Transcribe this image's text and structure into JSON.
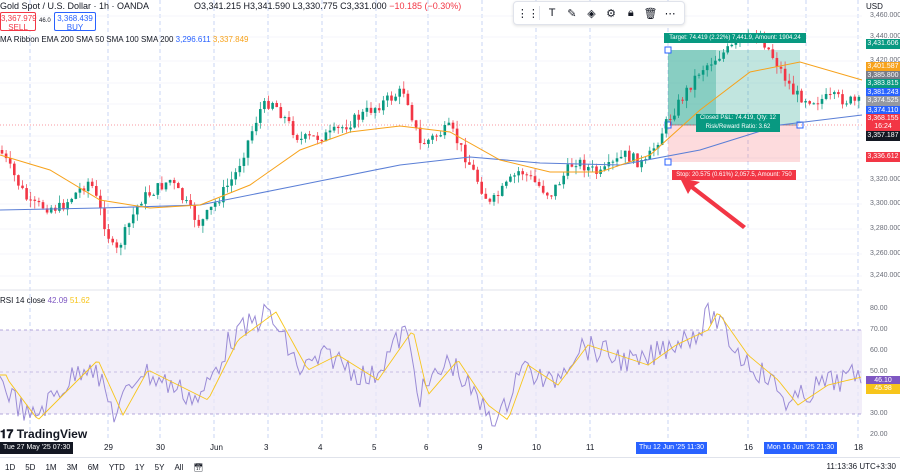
{
  "header": {
    "title": "Gold Spot / U.S. Dollar · 1h · OANDA",
    "ohlc": "O3,341.215 H3,341.590 L3,330.775 C3,331.000",
    "change": "−10.185 (−0.30%)"
  },
  "trade": {
    "sell_price": "3,367.979",
    "sell_label": "SELL",
    "spread": "46.0",
    "buy_price": "3,368.439",
    "buy_label": "BUY"
  },
  "indicator": {
    "name": "MA Ribbon EMA 200 SMA 50 SMA 100 SMA 200",
    "val1": "3,296.611",
    "val2": "3,337.849"
  },
  "rsi": {
    "name": "RSI 14 close",
    "val1": "42.09",
    "val2": "51.62"
  },
  "toolbar": {
    "icons": [
      "layout-icon",
      "text-icon",
      "pencil-icon",
      "fill-icon",
      "settings-icon",
      "lock-icon",
      "trash-icon",
      "more-icon"
    ]
  },
  "currency": "USD",
  "price_axis": [
    "3,460.000",
    "3,440.000",
    "3,420.000",
    "3,400.000",
    "3,380.000",
    "3,360.000",
    "3,340.000",
    "3,320.000",
    "3,300.000",
    "3,280.000",
    "3,260.000",
    "3,240.000"
  ],
  "price_tags": [
    {
      "text": "3,431.606",
      "color": "#089981"
    },
    {
      "text": "3,401.587",
      "color": "#f7a21b"
    },
    {
      "text": "3,385.800",
      "color": "#787b86"
    },
    {
      "text": "3,383.815",
      "color": "#089981"
    },
    {
      "text": "3,381.243",
      "color": "#2962ff"
    },
    {
      "text": "3,374.525",
      "color": "#9598a1"
    },
    {
      "text": "3,374.110",
      "color": "#2962ff"
    },
    {
      "text": "3,368.155",
      "color": "#f23645"
    },
    {
      "text": "16:24",
      "color": "#f23645"
    },
    {
      "text": "3,357.187",
      "color": "#131722"
    },
    {
      "text": "3,336.612",
      "color": "#f23645"
    }
  ],
  "rsi_axis": [
    "80.00",
    "70.00",
    "60.00",
    "50.00",
    "40.00",
    "30.00",
    "20.00"
  ],
  "rsi_tags": [
    {
      "text": "46.10",
      "color": "#7e57c2"
    },
    {
      "text": "45.98",
      "color": "#f7c51b"
    }
  ],
  "time_axis": [
    "29",
    "30",
    "Jun",
    "3",
    "4",
    "5",
    "6",
    "9",
    "10",
    "11",
    "16",
    "18"
  ],
  "time_tags": {
    "start": "Tue 27 May '25 07:30",
    "cursor1": "Thu 12 Jun '25 11:30",
    "cursor2": "Mon 16 Jun '25 21:30"
  },
  "position": {
    "target": "Target: 74.419 (2.22%) 7,441.9, Amount: 1904.24",
    "closed_line1": "Closed P&L: 74.419, Qty: 12",
    "closed_line2": "Risk/Reward Ratio: 3.62",
    "stop": "Stop: 20.575 (0.61%) 2,057.5, Amount: 750"
  },
  "brand": "TradingView",
  "ranges": [
    "1D",
    "5D",
    "1M",
    "3M",
    "6M",
    "YTD",
    "1Y",
    "5Y",
    "All"
  ],
  "clock": "11:13:36 UTC+3:30",
  "colors": {
    "up": "#089981",
    "down": "#f23645",
    "ema_blue": "#5b7fd6",
    "sma_orange": "#f7a21b",
    "rsi_purple": "#7e57c2",
    "rsi_band": "#ede7f6"
  }
}
